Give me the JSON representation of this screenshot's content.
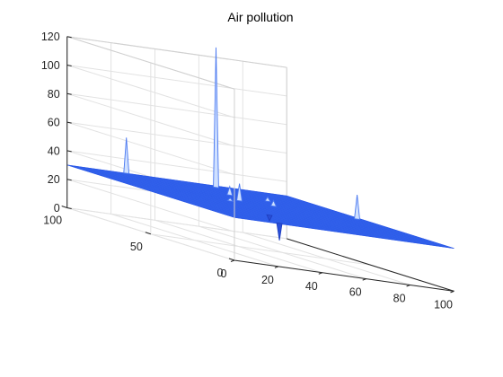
{
  "chart_data": {
    "type": "surface",
    "title": "Air pollution",
    "xlabel": "",
    "ylabel": "",
    "zlabel": "",
    "grid": true,
    "view": "3d-default",
    "colors": {
      "surface_face": "#3f74f2",
      "surface_edge": "#2b58e6",
      "axis": "#262626",
      "grid": "#e2e2e2",
      "pane_edge": "#d0d0d0"
    },
    "xlim": [
      0,
      100
    ],
    "ylim": [
      0,
      100
    ],
    "zlim": [
      0,
      120
    ],
    "xticks": [
      0,
      20,
      40,
      60,
      80,
      100
    ],
    "yticks": [
      0,
      50,
      100
    ],
    "zticks": [
      0,
      20,
      40,
      60,
      80,
      100,
      120
    ],
    "baseline_z": 30,
    "spikes": [
      {
        "x": 27,
        "y": 100,
        "z": 55
      },
      {
        "x": 64,
        "y": 95,
        "z": 128
      },
      {
        "x": 97,
        "y": 54,
        "z": 47
      },
      {
        "x": 55,
        "y": 75,
        "z": 36
      },
      {
        "x": 70,
        "y": 72,
        "z": 33
      },
      {
        "x": 48,
        "y": 60,
        "z": 42
      },
      {
        "x": 40,
        "y": 55,
        "z": 32
      },
      {
        "x": 62,
        "y": 58,
        "z": 34
      },
      {
        "x": 35,
        "y": 25,
        "z": 26
      },
      {
        "x": 22,
        "y": 2,
        "z": 18
      }
    ]
  }
}
